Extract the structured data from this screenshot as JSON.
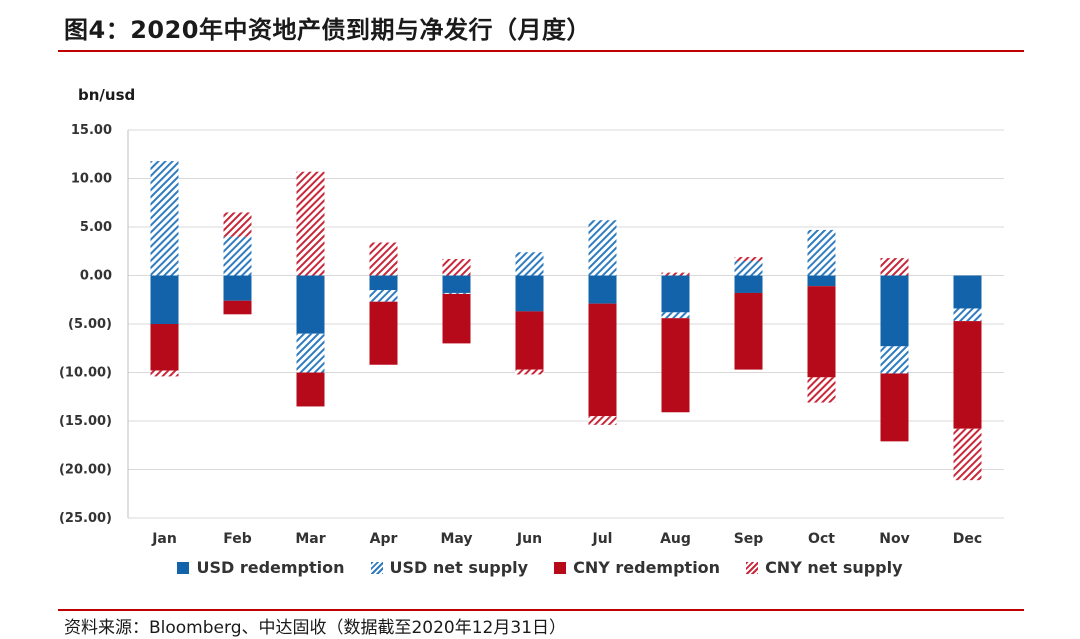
{
  "page": {
    "title": "图4：2020年中资地产债到期与净发行（月度）",
    "unit": "bn/usd",
    "source": "资料来源：Bloomberg、中达固收（数据截至2020年12月31日）"
  },
  "colors": {
    "usd_redemption": "#1263a9",
    "usd_net_supply": "#2f7cc0",
    "cny_redemption": "#b60a1a",
    "cny_net_supply": "#c8283a",
    "rule": "#c00000",
    "grid": "#d9d9d9"
  },
  "chart_data": {
    "type": "bar",
    "stacked": true,
    "categories": [
      "Jan",
      "Feb",
      "Mar",
      "Apr",
      "May",
      "Jun",
      "Jul",
      "Aug",
      "Sep",
      "Oct",
      "Nov",
      "Dec"
    ],
    "ylim": [
      -25,
      15
    ],
    "yticks": [
      15,
      10,
      5,
      0,
      -5,
      -10,
      -15,
      -20,
      -25
    ],
    "ytick_labels": [
      "15.00",
      "10.00",
      "5.00",
      "0.00",
      "(5.00)",
      "(10.00)",
      "(15.00)",
      "(20.00)",
      "(25.00)"
    ],
    "grid": true,
    "legend_position": "bottom",
    "series": [
      {
        "name": "USD redemption",
        "style": "solid",
        "color_key": "usd_redemption",
        "values": [
          -5.0,
          -2.6,
          -6.0,
          -1.5,
          -1.8,
          -3.7,
          -2.9,
          -3.8,
          -1.8,
          -1.1,
          -7.3,
          -3.4
        ]
      },
      {
        "name": "USD net supply",
        "style": "hatched",
        "color_key": "usd_net_supply",
        "values": [
          11.8,
          4.0,
          -4.0,
          -1.2,
          -0.1,
          2.4,
          5.7,
          -0.6,
          1.5,
          4.7,
          -2.8,
          -1.3
        ]
      },
      {
        "name": "CNY redemption",
        "style": "solid",
        "color_key": "cny_redemption",
        "values": [
          -4.8,
          -1.4,
          -3.5,
          -6.5,
          -5.1,
          -6.0,
          -11.6,
          -9.7,
          -7.9,
          -9.4,
          -7.0,
          -11.1
        ]
      },
      {
        "name": "CNY net supply",
        "style": "hatched",
        "color_key": "cny_net_supply",
        "values": [
          -0.6,
          2.5,
          10.7,
          3.4,
          1.7,
          -0.5,
          -0.9,
          0.3,
          0.4,
          -2.6,
          1.8,
          -5.3
        ]
      }
    ]
  }
}
